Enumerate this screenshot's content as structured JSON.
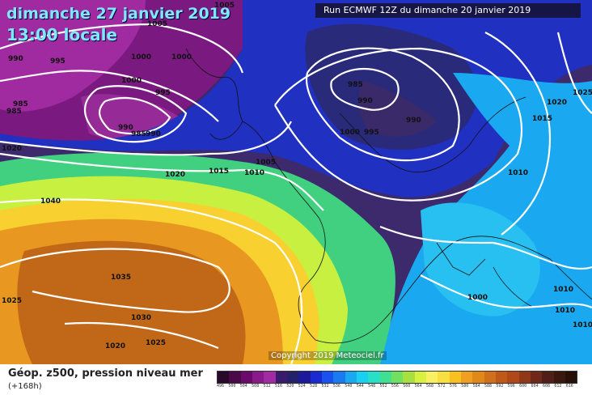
{
  "header": {
    "title_date": "dimanche 27 janvier 2019",
    "title_time": "13:00 locale",
    "run_info": "Run ECMWF 12Z du dimanche 20 janvier 2019"
  },
  "watermark": "Copyright 2019 Meteociel.fr",
  "legend": {
    "title": "Géop. z500, pression niveau mer",
    "subtitle": "(+168h)",
    "scale_values": [
      "496",
      "500",
      "504",
      "508",
      "512",
      "516",
      "520",
      "524",
      "528",
      "532",
      "536",
      "540",
      "544",
      "548",
      "552",
      "556",
      "560",
      "564",
      "568",
      "572",
      "576",
      "580",
      "584",
      "588",
      "592",
      "596",
      "600",
      "604",
      "608",
      "612",
      "616"
    ],
    "scale_colors": [
      "#2a0a2a",
      "#4a0a4a",
      "#6a0a6a",
      "#8a1a8a",
      "#a22aa2",
      "#3a1a6a",
      "#24206a",
      "#1a1a9a",
      "#1a2ad0",
      "#1a52f0",
      "#1a7af0",
      "#1aa8f0",
      "#1ad0f0",
      "#28e0c8",
      "#40e090",
      "#70e060",
      "#a8e040",
      "#d8f040",
      "#f8f060",
      "#f8e040",
      "#f8c020",
      "#f0a020",
      "#e08818",
      "#d07018",
      "#c05818",
      "#b04818",
      "#903818",
      "#702818",
      "#502018",
      "#3a1810",
      "#28100a"
    ]
  },
  "isobars": [
    {
      "label": "1005"
    },
    {
      "label": "1005"
    },
    {
      "label": "990"
    },
    {
      "label": "995"
    },
    {
      "label": "1000"
    },
    {
      "label": "1000"
    },
    {
      "label": "1000"
    },
    {
      "label": "995"
    },
    {
      "label": "985"
    },
    {
      "label": "985"
    },
    {
      "label": "990"
    },
    {
      "label": "985"
    },
    {
      "label": "990"
    },
    {
      "label": "1020"
    },
    {
      "label": "1020"
    },
    {
      "label": "1015"
    },
    {
      "label": "1010"
    },
    {
      "label": "1005"
    },
    {
      "label": "1040"
    },
    {
      "label": "1035"
    },
    {
      "label": "1030"
    },
    {
      "label": "1025"
    },
    {
      "label": "1020"
    },
    {
      "label": "1025"
    },
    {
      "label": "985"
    },
    {
      "label": "990"
    },
    {
      "label": "1000"
    },
    {
      "label": "995"
    },
    {
      "label": "990"
    },
    {
      "label": "1020"
    },
    {
      "label": "1025"
    },
    {
      "label": "1015"
    },
    {
      "label": "1010"
    },
    {
      "label": "1000"
    },
    {
      "label": "1010"
    },
    {
      "label": "1010"
    },
    {
      "label": "1010"
    }
  ]
}
